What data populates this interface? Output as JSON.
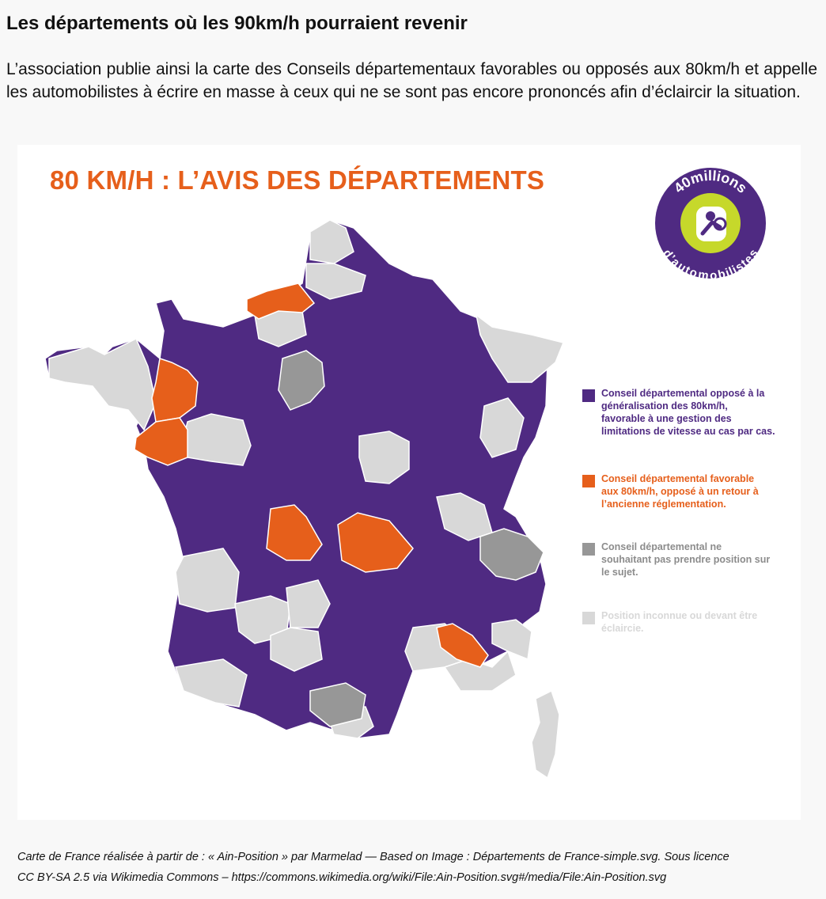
{
  "article": {
    "heading": "Les départements où les 90km/h pourraient revenir",
    "intro": "L’association publie ainsi la carte des Conseils départementaux favorables ou opposés aux 80km/h et appelle les automobilistes à écrire en masse à ceux qui ne se sont pas encore prononcés afin d’éclaircir la situation.",
    "caption_line1": "Carte de France réalisée à partir de : « Ain-Position » par Marmelad — Based on Image : Départements de France-simple.svg. Sous licence",
    "caption_line2": "CC BY-SA 2.5 via Wikimedia Commons – https://commons.wikimedia.org/wiki/File:Ain-Position.svg#/media/File:Ain-Position.svg"
  },
  "figure": {
    "title": "80 KM/H : L’AVIS DES DÉPARTEMENTS",
    "logo": {
      "top_text": "40millions",
      "bottom_text": "d’automobilistes",
      "icon": "driver-at-wheel-icon"
    },
    "colors": {
      "purple": "#4f2a82",
      "orange": "#e65f1b",
      "gray": "#979797",
      "light_gray": "#d8d8d8",
      "lime": "#c6d82b"
    },
    "legend": [
      {
        "label_lines": [
          "Conseil départemental opposé à la",
          "généralisation des 80km/h,",
          "favorable à une gestion des",
          "limitations de vitesse au cas par cas."
        ],
        "color": "#4f2a82"
      },
      {
        "label_lines": [
          "Conseil départemental favorable",
          "aux 80km/h, opposé à un retour à",
          "l’ancienne réglementation."
        ],
        "color": "#e65f1b"
      },
      {
        "label_lines": [
          "Conseil départemental ne",
          "souhaitant pas prendre position sur",
          "le sujet."
        ],
        "color": "#979797"
      },
      {
        "label_lines": [
          "Position inconnue ou devant être",
          "éclaircie."
        ],
        "color": "#d8d8d8"
      }
    ]
  }
}
